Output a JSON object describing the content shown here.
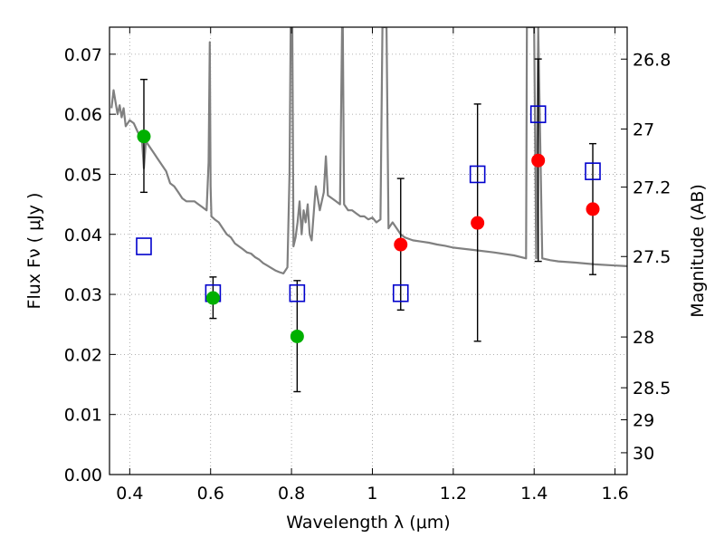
{
  "chart_data": {
    "type": "scatter",
    "xlabel": "Wavelength  λ (μm)",
    "ylabel": "Flux  Fν  ( μJy )",
    "ylabel_right": "Magnitude (AB)",
    "xlim": [
      0.35,
      1.63
    ],
    "ylim": [
      0.0,
      0.0745
    ],
    "grid": true,
    "legend": "none",
    "x_ticks": [
      {
        "value": 0.4,
        "label": "0.4"
      },
      {
        "value": 0.6,
        "label": "0.6"
      },
      {
        "value": 0.8,
        "label": "0.8"
      },
      {
        "value": 1.0,
        "label": "1"
      },
      {
        "value": 1.2,
        "label": "1.2"
      },
      {
        "value": 1.4,
        "label": "1.4"
      },
      {
        "value": 1.6,
        "label": "1.6"
      }
    ],
    "y_ticks": [
      {
        "value": 0.0,
        "label": "0.00"
      },
      {
        "value": 0.01,
        "label": "0.01"
      },
      {
        "value": 0.02,
        "label": "0.02"
      },
      {
        "value": 0.03,
        "label": "0.03"
      },
      {
        "value": 0.04,
        "label": "0.04"
      },
      {
        "value": 0.05,
        "label": "0.05"
      },
      {
        "value": 0.06,
        "label": "0.06"
      },
      {
        "value": 0.07,
        "label": "0.07"
      }
    ],
    "magnitude_ticks": [
      {
        "mag": 26.8,
        "label": "26.8"
      },
      {
        "mag": 27.0,
        "label": "27"
      },
      {
        "mag": 27.2,
        "label": "27.2"
      },
      {
        "mag": 27.5,
        "label": "27.5"
      },
      {
        "mag": 28.0,
        "label": "28"
      },
      {
        "mag": 28.5,
        "label": "28.5"
      },
      {
        "mag": 29.0,
        "label": "29"
      },
      {
        "mag": 30.0,
        "label": "30"
      }
    ],
    "colors": {
      "model": "#808080",
      "detection": "#00b000",
      "detection_ir": "#ff0000",
      "model_photometry": "#0000cc",
      "errorbar": "#000000",
      "grid": "#999999"
    },
    "series": [
      {
        "marker": "circle",
        "color": "#00b000",
        "x": [
          0.435,
          0.606,
          0.814
        ],
        "y": [
          0.0563,
          0.0294,
          0.023
        ],
        "yerr_low": [
          0.0093,
          0.0034,
          0.0092
        ],
        "yerr_high": [
          0.0095,
          0.0035,
          0.0093
        ]
      },
      {
        "marker": "circle",
        "color": "#ff0000",
        "x": [
          1.07,
          1.26,
          1.41,
          1.545
        ],
        "y": [
          0.0383,
          0.0419,
          0.0523,
          0.0442
        ],
        "yerr_low": [
          0.0109,
          0.0197,
          0.0168,
          0.0109
        ],
        "yerr_high": [
          0.011,
          0.0198,
          0.0169,
          0.0109
        ]
      },
      {
        "marker": "square-open",
        "color": "#0000cc",
        "x": [
          0.435,
          0.606,
          0.814,
          1.07,
          1.26,
          1.41,
          1.545
        ],
        "y": [
          0.038,
          0.0302,
          0.0302,
          0.0302,
          0.05,
          0.06,
          0.0505
        ]
      },
      {
        "kind": "line",
        "color": "#808080",
        "x": [
          0.355,
          0.36,
          0.365,
          0.37,
          0.375,
          0.38,
          0.385,
          0.39,
          0.4,
          0.41,
          0.42,
          0.43,
          0.435,
          0.44,
          0.45,
          0.46,
          0.47,
          0.48,
          0.49,
          0.5,
          0.51,
          0.52,
          0.53,
          0.54,
          0.55,
          0.56,
          0.57,
          0.58,
          0.59,
          0.595,
          0.598,
          0.6,
          0.602,
          0.605,
          0.61,
          0.62,
          0.63,
          0.64,
          0.65,
          0.66,
          0.67,
          0.68,
          0.69,
          0.7,
          0.71,
          0.72,
          0.73,
          0.74,
          0.75,
          0.76,
          0.77,
          0.78,
          0.79,
          0.795,
          0.798,
          0.8,
          0.802,
          0.805,
          0.81,
          0.815,
          0.82,
          0.825,
          0.83,
          0.835,
          0.84,
          0.845,
          0.85,
          0.86,
          0.87,
          0.88,
          0.885,
          0.89,
          0.9,
          0.91,
          0.92,
          0.925,
          0.927,
          0.93,
          0.935,
          0.94,
          0.95,
          0.96,
          0.97,
          0.98,
          0.99,
          1.0,
          1.01,
          1.02,
          1.025,
          1.03,
          1.035,
          1.04,
          1.05,
          1.06,
          1.065,
          1.07,
          1.08,
          1.1,
          1.12,
          1.14,
          1.16,
          1.18,
          1.2,
          1.25,
          1.3,
          1.35,
          1.38,
          1.382,
          1.4,
          1.405,
          1.41,
          1.42,
          1.44,
          1.46,
          1.5,
          1.55,
          1.6,
          1.63
        ],
        "y": [
          0.061,
          0.064,
          0.062,
          0.06,
          0.0615,
          0.0595,
          0.061,
          0.058,
          0.059,
          0.0585,
          0.057,
          0.056,
          0.051,
          0.0555,
          0.0545,
          0.0535,
          0.0525,
          0.0515,
          0.0505,
          0.0485,
          0.048,
          0.047,
          0.046,
          0.0455,
          0.0455,
          0.0455,
          0.045,
          0.0445,
          0.044,
          0.052,
          0.072,
          0.048,
          0.043,
          0.0428,
          0.0425,
          0.042,
          0.041,
          0.04,
          0.0395,
          0.0385,
          0.038,
          0.0375,
          0.037,
          0.0368,
          0.0362,
          0.0358,
          0.0352,
          0.0348,
          0.0344,
          0.034,
          0.0337,
          0.0335,
          0.0345,
          0.05,
          0.0745,
          0.0745,
          0.0745,
          0.038,
          0.0395,
          0.042,
          0.0455,
          0.04,
          0.044,
          0.042,
          0.045,
          0.04,
          0.039,
          0.048,
          0.044,
          0.047,
          0.053,
          0.0465,
          0.046,
          0.0455,
          0.045,
          0.0745,
          0.0745,
          0.045,
          0.0445,
          0.044,
          0.044,
          0.0435,
          0.043,
          0.043,
          0.0425,
          0.0428,
          0.042,
          0.0425,
          0.0745,
          0.0745,
          0.0745,
          0.041,
          0.042,
          0.041,
          0.0405,
          0.04,
          0.0395,
          0.039,
          0.0388,
          0.0386,
          0.0383,
          0.0381,
          0.0378,
          0.0374,
          0.037,
          0.0365,
          0.036,
          0.0745,
          0.0745,
          0.036,
          0.0745,
          0.036,
          0.0357,
          0.0355,
          0.0353,
          0.035,
          0.0348,
          0.0347
        ]
      }
    ]
  }
}
